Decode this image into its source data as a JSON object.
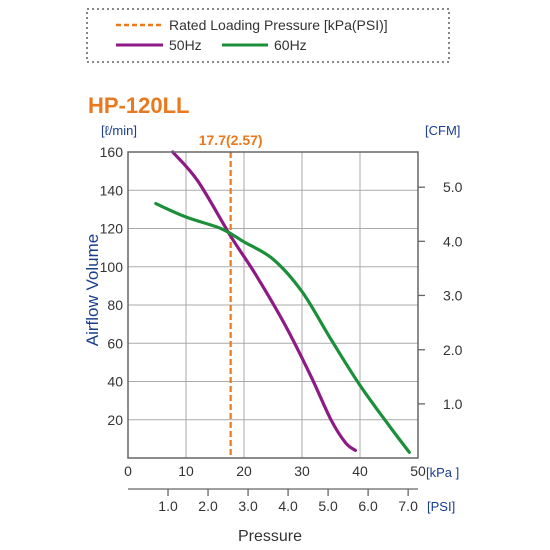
{
  "chart_data": {
    "type": "line",
    "title": "HP-120LL",
    "legend": {
      "placement": "top",
      "entries": [
        {
          "label": "Rated Loading Pressure [kPa(PSI)]",
          "color": "#e8791f",
          "style": "dashed"
        },
        {
          "label": "50Hz",
          "color": "#8e1a86",
          "style": "solid"
        },
        {
          "label": "60Hz",
          "color": "#1c8f3a",
          "style": "solid"
        }
      ]
    },
    "ylabel": "Airflow Volume",
    "xlabel": "Pressure",
    "y_unit_left": "[ℓ/min]",
    "y_unit_right": "[CFM]",
    "x_unit_kpa": "[kPa ]",
    "x_unit_psi": "[PSI]",
    "xlim": [
      0,
      50
    ],
    "ylim": [
      0,
      160
    ],
    "x_ticks_kpa": [
      "0",
      "10",
      "20",
      "30",
      "40",
      "50"
    ],
    "y_ticks_left": [
      "20",
      "40",
      "60",
      "80",
      "100",
      "120",
      "140",
      "160"
    ],
    "right_ticks": [
      {
        "label": "1.0",
        "value": 28.3
      },
      {
        "label": "2.0",
        "value": 56.6
      },
      {
        "label": "3.0",
        "value": 85.0
      },
      {
        "label": "4.0",
        "value": 113.3
      },
      {
        "label": "5.0",
        "value": 141.6
      }
    ],
    "psi_ticks": [
      {
        "label": "1.0",
        "kpa": 6.9
      },
      {
        "label": "2.0",
        "kpa": 13.8
      },
      {
        "label": "3.0",
        "kpa": 20.7
      },
      {
        "label": "4.0",
        "kpa": 27.6
      },
      {
        "label": "5.0",
        "kpa": 34.5
      },
      {
        "label": "6.0",
        "kpa": 41.4
      },
      {
        "label": "7.0",
        "kpa": 48.3
      }
    ],
    "rated": {
      "kpa": 17.7,
      "label": "17.7(2.57)"
    },
    "grid": true,
    "series": [
      {
        "name": "50Hz",
        "color": "#8e1a86",
        "points": [
          [
            7.7,
            160
          ],
          [
            12,
            145
          ],
          [
            17.7,
            116
          ],
          [
            22,
            96
          ],
          [
            27,
            70
          ],
          [
            31.5,
            43
          ],
          [
            35,
            20
          ],
          [
            37.5,
            8
          ],
          [
            39.2,
            4
          ]
        ]
      },
      {
        "name": "60Hz",
        "color": "#1c8f3a",
        "points": [
          [
            4.8,
            133
          ],
          [
            10,
            126
          ],
          [
            16,
            120
          ],
          [
            20,
            113
          ],
          [
            25,
            104
          ],
          [
            30,
            87
          ],
          [
            35,
            62
          ],
          [
            40,
            38
          ],
          [
            45,
            17
          ],
          [
            48.5,
            3
          ]
        ]
      }
    ]
  }
}
